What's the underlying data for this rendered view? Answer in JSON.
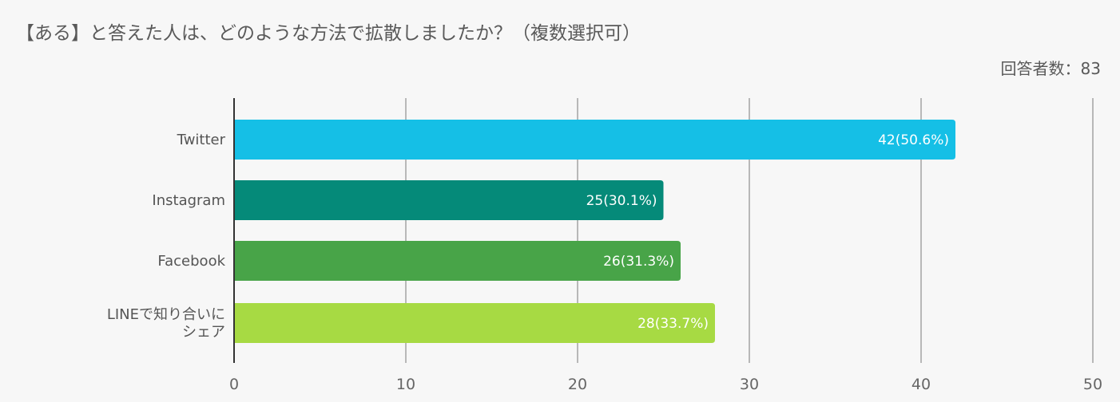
{
  "header": {
    "title": "【ある】と答えた人は、どのような方法で拡散しましたか？（複数選択可）",
    "respondents": "回答者数：83"
  },
  "chart_data": {
    "type": "bar",
    "orientation": "horizontal",
    "categories": [
      [
        "Twitter"
      ],
      [
        "Instagram"
      ],
      [
        "Facebook"
      ],
      [
        "LINEで知り合いに",
        "シェア"
      ]
    ],
    "values": [
      42,
      25,
      26,
      28
    ],
    "value_labels": [
      "42(50.6%)",
      "25(30.1%)",
      "26(31.3%)",
      "28(33.7%)"
    ],
    "colors": [
      "#15bfe6",
      "#058a79",
      "#48a448",
      "#a7da43"
    ],
    "xlim": [
      0,
      50
    ],
    "xticks": [
      0,
      10,
      20,
      30,
      40,
      50
    ],
    "grid": true,
    "legend": "none"
  }
}
